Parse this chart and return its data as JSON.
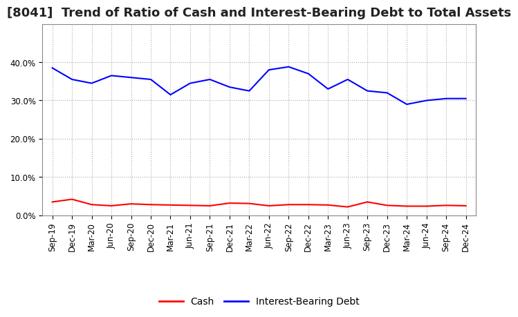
{
  "title": "[8041]  Trend of Ratio of Cash and Interest-Bearing Debt to Total Assets",
  "x_labels": [
    "Sep-19",
    "Dec-19",
    "Mar-20",
    "Jun-20",
    "Sep-20",
    "Dec-20",
    "Mar-21",
    "Jun-21",
    "Sep-21",
    "Dec-21",
    "Mar-22",
    "Jun-22",
    "Sep-22",
    "Dec-22",
    "Mar-23",
    "Jun-23",
    "Sep-23",
    "Dec-23",
    "Mar-24",
    "Jun-24",
    "Sep-24",
    "Dec-24"
  ],
  "cash": [
    3.5,
    4.2,
    2.8,
    2.5,
    3.0,
    2.8,
    2.7,
    2.6,
    2.5,
    3.2,
    3.1,
    2.5,
    2.8,
    2.8,
    2.7,
    2.2,
    3.5,
    2.6,
    2.4,
    2.4,
    2.6,
    2.5
  ],
  "interest_bearing_debt": [
    38.5,
    35.5,
    34.5,
    36.5,
    36.0,
    35.5,
    31.5,
    34.5,
    35.5,
    33.5,
    32.5,
    38.0,
    38.8,
    37.0,
    33.0,
    35.5,
    32.5,
    32.0,
    29.0,
    30.0,
    30.5,
    30.5
  ],
  "cash_color": "#ff0000",
  "debt_color": "#0000ff",
  "ylim": [
    0,
    50
  ],
  "yticks": [
    0.0,
    10.0,
    20.0,
    30.0,
    40.0
  ],
  "ytick_labels": [
    "0.0%",
    "10.0%",
    "20.0%",
    "30.0%",
    "40.0%"
  ],
  "background_color": "#ffffff",
  "grid_color": "#aaaaaa",
  "legend_cash": "Cash",
  "legend_debt": "Interest-Bearing Debt",
  "title_fontsize": 13,
  "axis_fontsize": 8.5,
  "legend_fontsize": 10
}
